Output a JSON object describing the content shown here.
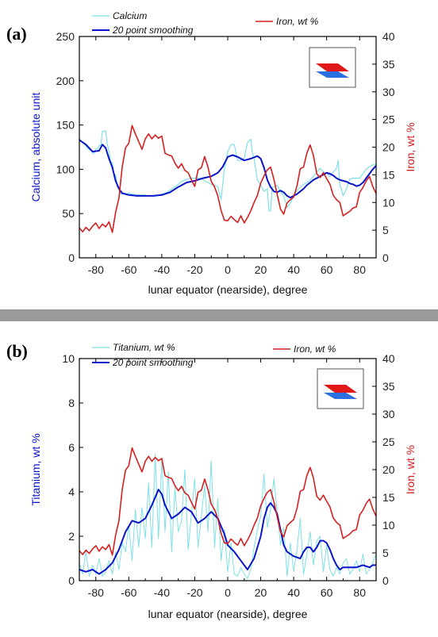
{
  "colors": {
    "calcium": "#7fe0e6",
    "smooth": "#0a14c8",
    "iron": "#d42020",
    "titanium": "#7fe0e6",
    "frame": "#000000",
    "divider": "#9a9a9a"
  },
  "chart_data": [
    {
      "type": "line",
      "panel_label": "(a)",
      "xlabel": "lunar equator (nearside), degree",
      "ylabel_left": "Calcium, absolute unit",
      "ylabel_right": "Iron, wt %",
      "xlim": [
        -90,
        90
      ],
      "ylim_left": [
        0,
        250
      ],
      "ylim_right": [
        0,
        40
      ],
      "x_ticks": [
        -80,
        -60,
        -40,
        -20,
        0,
        20,
        40,
        60,
        80
      ],
      "y_ticks_left": [
        0,
        50,
        100,
        150,
        200,
        250
      ],
      "y_ticks_right": [
        0,
        5,
        10,
        15,
        20,
        25,
        30,
        35,
        40
      ],
      "legend": {
        "left_placement": "top-left",
        "right_placement": "top-right"
      },
      "inset_icon": "layered-planes-icon",
      "series": [
        {
          "name": "Calcium",
          "axis": "left",
          "color_key": "calcium",
          "x": [
            -90,
            -88,
            -86,
            -84,
            -83,
            -82,
            -81,
            -80,
            -79,
            -78,
            -77,
            -76,
            -75,
            -74,
            -73,
            -72,
            -71,
            -70,
            -69,
            -68,
            -67,
            -66,
            -65,
            -64,
            -62,
            -60,
            -58,
            -56,
            -54,
            -52,
            -50,
            -48,
            -46,
            -44,
            -42,
            -40,
            -38,
            -36,
            -34,
            -32,
            -30,
            -28,
            -26,
            -24,
            -22,
            -20,
            -18,
            -16,
            -14,
            -12,
            -10,
            -8,
            -6,
            -5,
            -4,
            -2,
            0,
            2,
            4,
            6,
            8,
            9,
            10,
            11,
            12,
            13,
            14,
            15,
            16,
            18,
            20,
            22,
            24,
            25,
            26,
            27,
            28,
            30,
            32,
            34,
            36,
            38,
            40,
            42,
            44,
            46,
            48,
            50,
            52,
            54,
            56,
            58,
            60,
            62,
            64,
            66,
            67,
            68,
            70,
            72,
            74,
            76,
            78,
            80,
            82,
            84,
            86,
            88,
            90
          ],
          "y": [
            135,
            130,
            126,
            122,
            122,
            118,
            118,
            123,
            123,
            127,
            127,
            143,
            143,
            143,
            128,
            120,
            108,
            108,
            94,
            94,
            80,
            80,
            72,
            72,
            72,
            73,
            72,
            71,
            71,
            71,
            71,
            70,
            70,
            71,
            71,
            72,
            73,
            75,
            78,
            80,
            83,
            86,
            88,
            89,
            90,
            90,
            90,
            89,
            87,
            85,
            83,
            82,
            80,
            72,
            66,
            100,
            120,
            128,
            128,
            110,
            110,
            112,
            112,
            122,
            130,
            132,
            134,
            118,
            112,
            88,
            82,
            75,
            78,
            53,
            53,
            80,
            80,
            82,
            75,
            70,
            57,
            62,
            70,
            76,
            80,
            83,
            85,
            88,
            92,
            97,
            101,
            97,
            96,
            92,
            97,
            101,
            110,
            83,
            70,
            78,
            89,
            90,
            90,
            90,
            95,
            100,
            103,
            105,
            105
          ]
        },
        {
          "name": "20 point smoothing",
          "axis": "left",
          "color_key": "smooth",
          "x": [
            -90,
            -86,
            -82,
            -78,
            -76,
            -74,
            -72,
            -70,
            -68,
            -66,
            -64,
            -60,
            -55,
            -50,
            -45,
            -40,
            -35,
            -30,
            -25,
            -20,
            -15,
            -10,
            -6,
            -3,
            0,
            3,
            6,
            10,
            14,
            18,
            20,
            22,
            24,
            26,
            28,
            30,
            32,
            34,
            36,
            38,
            40,
            42,
            44,
            46,
            48,
            50,
            52,
            54,
            56,
            58,
            60,
            62,
            64,
            66,
            68,
            70,
            72,
            74,
            76,
            78,
            80,
            82,
            84,
            86,
            88,
            90
          ],
          "y": [
            133,
            128,
            120,
            121,
            128,
            124,
            112,
            102,
            87,
            78,
            73,
            71,
            70,
            70,
            70,
            71,
            74,
            80,
            85,
            87,
            90,
            92,
            96,
            103,
            114,
            116,
            114,
            110,
            112,
            115,
            112,
            102,
            88,
            80,
            75,
            74,
            76,
            74,
            70,
            68,
            70,
            72,
            75,
            78,
            82,
            85,
            88,
            90,
            92,
            94,
            96,
            95,
            93,
            90,
            88,
            87,
            86,
            84,
            83,
            81,
            82,
            85,
            90,
            95,
            100,
            104
          ]
        },
        {
          "name": "Iron, wt %",
          "axis": "right",
          "color_key": "iron",
          "x": [
            -90,
            -88,
            -86,
            -84,
            -82,
            -80,
            -78,
            -76,
            -74,
            -72,
            -70,
            -68,
            -66,
            -64,
            -62,
            -60,
            -58,
            -56,
            -54,
            -52,
            -50,
            -48,
            -46,
            -44,
            -42,
            -40,
            -38,
            -36,
            -34,
            -32,
            -30,
            -28,
            -26,
            -24,
            -22,
            -20,
            -18,
            -16,
            -14,
            -12,
            -10,
            -8,
            -6,
            -4,
            -2,
            0,
            2,
            4,
            6,
            8,
            10,
            12,
            14,
            16,
            18,
            20,
            22,
            24,
            26,
            28,
            30,
            32,
            34,
            36,
            38,
            40,
            42,
            44,
            46,
            48,
            50,
            52,
            54,
            56,
            58,
            60,
            62,
            64,
            66,
            68,
            70,
            72,
            74,
            76,
            78,
            80,
            82,
            84,
            86,
            88,
            90
          ],
          "y": [
            5.4,
            4.7,
            5.5,
            4.9,
            5.7,
            6.3,
            5.3,
            6.1,
            5.6,
            6.5,
            4.6,
            8.2,
            10.8,
            16.4,
            19.9,
            20.7,
            23.9,
            22.4,
            21.0,
            19.6,
            21.5,
            22.4,
            21.5,
            22.2,
            21.6,
            22.0,
            18.9,
            18.6,
            18.4,
            17.1,
            16.2,
            17.0,
            15.8,
            15.4,
            14.1,
            12.9,
            15.9,
            16.3,
            18.3,
            16.4,
            13.8,
            12.8,
            11.2,
            8.5,
            6.8,
            6.7,
            7.5,
            6.9,
            6.4,
            7.6,
            6.3,
            7.3,
            8.5,
            10.0,
            11.3,
            13.5,
            14.8,
            15.9,
            16.4,
            14.2,
            11.5,
            8.8,
            7.9,
            9.9,
            10.5,
            11.0,
            13.0,
            16.1,
            16.4,
            18.9,
            20.4,
            18.5,
            15.2,
            14.5,
            15.4,
            14.3,
            13.3,
            11.3,
            10.5,
            10.0,
            7.6,
            8.0,
            8.4,
            9.0,
            9.2,
            11.8,
            12.7,
            13.9,
            14.7,
            12.9,
            11.6
          ]
        }
      ]
    },
    {
      "type": "line",
      "panel_label": "(b)",
      "xlabel": "lunar equator (nearside), degree",
      "ylabel_left": "Titanium, wt %",
      "ylabel_right": "Iron, wt %",
      "xlim": [
        -90,
        90
      ],
      "ylim_left": [
        0,
        10
      ],
      "ylim_right": [
        0,
        40
      ],
      "x_ticks": [
        -80,
        -60,
        -40,
        -20,
        0,
        20,
        40,
        60,
        80
      ],
      "y_ticks_left": [
        0,
        2,
        4,
        6,
        8,
        10
      ],
      "y_ticks_right": [
        0,
        5,
        10,
        15,
        20,
        25,
        30,
        35,
        40
      ],
      "legend": {
        "left_placement": "top-left",
        "right_placement": "top-right"
      },
      "inset_icon": "layered-planes-icon",
      "series": [
        {
          "name": "Titanium, wt %",
          "axis": "left",
          "color_key": "titanium",
          "x": [
            -90,
            -88,
            -86,
            -84,
            -82,
            -80,
            -78,
            -76,
            -74,
            -72,
            -70,
            -68,
            -66,
            -64,
            -62,
            -60,
            -58,
            -56,
            -54,
            -52,
            -50,
            -48,
            -46,
            -44,
            -42,
            -40,
            -38,
            -36,
            -34,
            -32,
            -30,
            -28,
            -26,
            -24,
            -22,
            -20,
            -18,
            -16,
            -14,
            -12,
            -10,
            -8,
            -6,
            -4,
            -2,
            0,
            2,
            4,
            6,
            8,
            10,
            12,
            14,
            16,
            18,
            20,
            22,
            24,
            26,
            28,
            30,
            32,
            34,
            36,
            38,
            40,
            42,
            44,
            46,
            48,
            50,
            52,
            54,
            56,
            58,
            60,
            62,
            64,
            66,
            68,
            70,
            72,
            74,
            76,
            78,
            80,
            82,
            84,
            86,
            88,
            90
          ],
          "y": [
            0.8,
            0.3,
            1.3,
            0.2,
            0.7,
            0.3,
            1.0,
            0.2,
            0.4,
            0.9,
            0.3,
            1.3,
            0.5,
            1.7,
            1.3,
            2.5,
            0.9,
            3.2,
            1.5,
            3.3,
            1.9,
            4.4,
            1.5,
            5.7,
            1.9,
            5.5,
            2.2,
            4.9,
            1.3,
            4.2,
            2.2,
            2.7,
            5.0,
            1.4,
            3.0,
            4.6,
            1.5,
            2.9,
            4.3,
            2.2,
            5.4,
            1.5,
            3.7,
            0.9,
            2.3,
            0.4,
            1.7,
            0.3,
            0.2,
            0.6,
            0.3,
            0.1,
            0.5,
            1.5,
            2.3,
            2.9,
            4.8,
            2.4,
            3.2,
            4.6,
            3.1,
            1.6,
            2.4,
            0.2,
            1.7,
            0.4,
            1.4,
            2.8,
            0.3,
            1.2,
            2.2,
            0.7,
            1.8,
            2.0,
            0.4,
            1.6,
            0.5,
            0.2,
            0.6,
            0.3,
            0.8,
            1.0,
            0.3,
            0.5,
            0.9,
            0.4,
            1.2,
            0.3,
            0.5,
            0.8,
            1.2
          ]
        },
        {
          "name": "20 point smoothing",
          "axis": "left",
          "color_key": "smooth",
          "x": [
            -90,
            -86,
            -82,
            -78,
            -74,
            -70,
            -66,
            -62,
            -58,
            -54,
            -50,
            -46,
            -42,
            -40,
            -38,
            -34,
            -30,
            -26,
            -22,
            -18,
            -14,
            -10,
            -6,
            -2,
            0,
            4,
            8,
            12,
            16,
            20,
            22,
            24,
            26,
            28,
            30,
            32,
            34,
            36,
            40,
            44,
            46,
            48,
            50,
            52,
            54,
            56,
            58,
            60,
            62,
            64,
            66,
            68,
            70,
            74,
            78,
            82,
            86,
            88,
            90
          ],
          "y": [
            0.5,
            0.4,
            0.5,
            0.3,
            0.5,
            0.8,
            1.4,
            2.2,
            2.7,
            2.6,
            2.8,
            3.4,
            4.1,
            3.9,
            3.4,
            2.8,
            3.0,
            3.3,
            3.1,
            2.6,
            2.8,
            3.1,
            2.8,
            2.1,
            1.6,
            1.3,
            0.9,
            0.5,
            1.0,
            2.0,
            2.8,
            3.3,
            3.5,
            3.3,
            3.0,
            2.3,
            1.6,
            1.3,
            1.1,
            1.0,
            1.3,
            1.5,
            1.5,
            1.3,
            1.5,
            1.8,
            1.8,
            1.7,
            1.4,
            1.0,
            0.7,
            0.5,
            0.6,
            0.6,
            0.6,
            0.7,
            0.6,
            0.7,
            0.7
          ]
        },
        {
          "name": "Iron, wt %",
          "axis": "right",
          "color_key": "iron",
          "x": [
            -90,
            -88,
            -86,
            -84,
            -82,
            -80,
            -78,
            -76,
            -74,
            -72,
            -70,
            -68,
            -66,
            -64,
            -62,
            -60,
            -58,
            -56,
            -54,
            -52,
            -50,
            -48,
            -46,
            -44,
            -42,
            -40,
            -38,
            -36,
            -34,
            -32,
            -30,
            -28,
            -26,
            -24,
            -22,
            -20,
            -18,
            -16,
            -14,
            -12,
            -10,
            -8,
            -6,
            -4,
            -2,
            0,
            2,
            4,
            6,
            8,
            10,
            12,
            14,
            16,
            18,
            20,
            22,
            24,
            26,
            28,
            30,
            32,
            34,
            36,
            38,
            40,
            42,
            44,
            46,
            48,
            50,
            52,
            54,
            56,
            58,
            60,
            62,
            64,
            66,
            68,
            70,
            72,
            74,
            76,
            78,
            80,
            82,
            84,
            86,
            88,
            90
          ],
          "y": [
            5.4,
            4.7,
            5.5,
            4.9,
            5.7,
            6.3,
            5.3,
            6.1,
            5.6,
            6.5,
            4.6,
            8.2,
            10.8,
            16.4,
            19.9,
            20.7,
            23.9,
            22.4,
            21.0,
            19.6,
            21.5,
            22.4,
            21.5,
            22.2,
            21.6,
            22.0,
            18.9,
            18.6,
            18.4,
            17.1,
            16.2,
            17.0,
            15.8,
            15.4,
            14.1,
            12.9,
            15.9,
            16.3,
            18.3,
            16.4,
            13.8,
            12.8,
            11.2,
            8.5,
            6.8,
            6.7,
            7.5,
            6.9,
            6.4,
            7.6,
            6.3,
            7.3,
            8.5,
            10.0,
            11.3,
            13.5,
            14.8,
            15.9,
            16.4,
            14.2,
            11.5,
            8.8,
            7.9,
            9.9,
            10.5,
            11.0,
            13.0,
            16.1,
            16.4,
            18.9,
            20.4,
            18.5,
            15.2,
            14.5,
            15.4,
            14.3,
            13.3,
            11.3,
            10.5,
            10.0,
            7.6,
            8.0,
            8.4,
            9.0,
            9.2,
            11.8,
            12.7,
            13.9,
            14.7,
            12.9,
            11.6
          ]
        }
      ]
    }
  ]
}
